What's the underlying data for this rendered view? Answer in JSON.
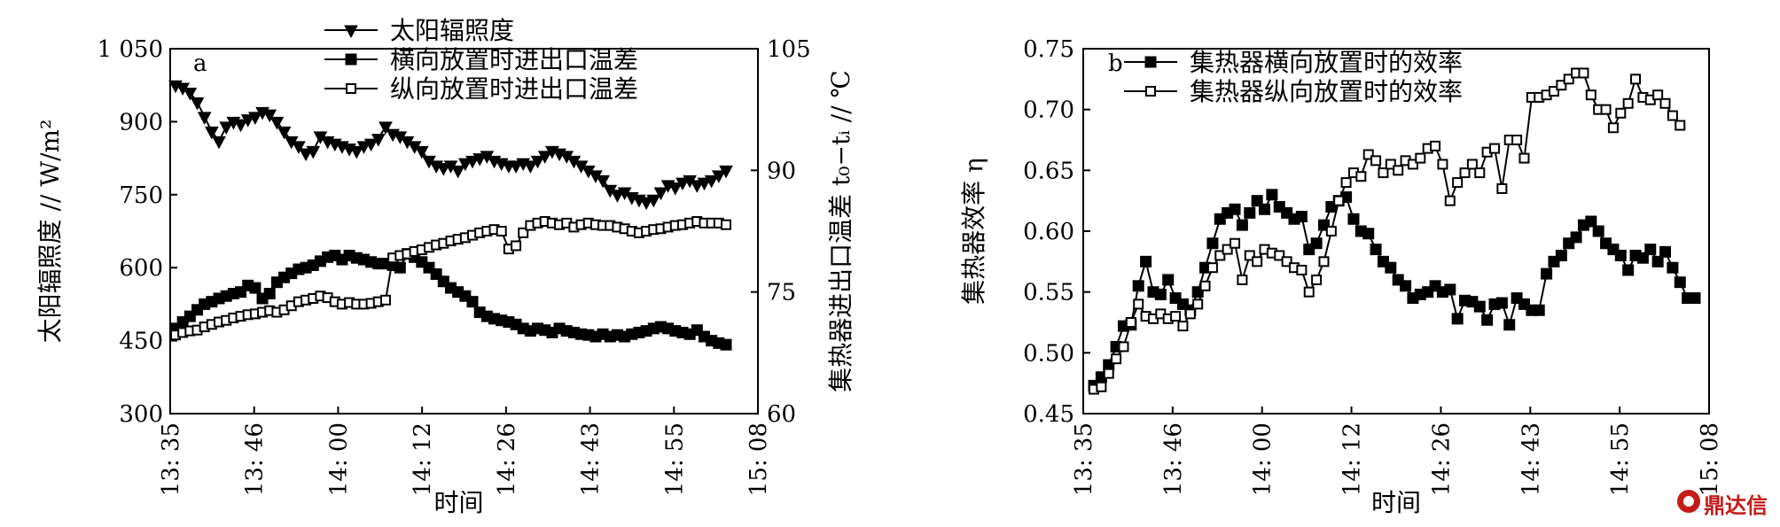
{
  "colors": {
    "ink": "#000000",
    "background": "#ffffff",
    "watermark": "#c41a1a"
  },
  "watermark": {
    "icon": "dingdaxin-logo-icon",
    "text": "鼎达信"
  },
  "chart_data": [
    {
      "panel": "a",
      "type": "line",
      "xlabel": "时间",
      "x_ticks": [
        "13: 35",
        "13: 46",
        "14: 00",
        "14: 12",
        "14: 26",
        "14: 43",
        "14: 55",
        "15: 08"
      ],
      "ylabel_left": "太阳辐照度 // W/m²",
      "ylabel_right": "集热器进出口温差 t₀−tᵢ // ℃",
      "ylim_left": [
        300,
        1050
      ],
      "ylim_right": [
        60,
        105
      ],
      "yticks_left": [
        300,
        450,
        600,
        750,
        900,
        1050
      ],
      "yticks_left_labels": [
        "300",
        "450",
        "600",
        "750",
        "900",
        "1 050"
      ],
      "yticks_right": [
        60,
        75,
        90,
        105
      ],
      "legend": "top-left",
      "grid": false,
      "series": [
        {
          "name": "太阳辐照度",
          "axis": "left",
          "marker": "triangle-down",
          "values": [
            975,
            970,
            960,
            940,
            910,
            880,
            860,
            890,
            900,
            895,
            905,
            910,
            920,
            915,
            900,
            880,
            860,
            850,
            835,
            840,
            870,
            860,
            855,
            850,
            845,
            840,
            850,
            855,
            865,
            890,
            875,
            870,
            860,
            850,
            840,
            820,
            810,
            805,
            810,
            800,
            815,
            820,
            825,
            830,
            820,
            815,
            810,
            810,
            815,
            810,
            820,
            830,
            840,
            835,
            830,
            820,
            810,
            800,
            790,
            780,
            760,
            750,
            755,
            745,
            740,
            735,
            740,
            755,
            770,
            765,
            775,
            780,
            770,
            775,
            780,
            790,
            800
          ]
        },
        {
          "name": "横向放置时进出口温差",
          "axis": "right",
          "marker": "square-filled",
          "values": [
            70.5,
            71.3,
            72.0,
            72.8,
            73.5,
            73.8,
            74.2,
            74.5,
            74.8,
            75.0,
            75.8,
            75.5,
            74.2,
            74.8,
            76.2,
            76.8,
            77.3,
            77.8,
            78.0,
            78.3,
            78.8,
            79.3,
            79.5,
            79.0,
            79.5,
            79.2,
            79.0,
            78.7,
            78.5,
            78.5,
            78.3,
            78.0,
            79.7,
            79.3,
            78.7,
            78.0,
            77.2,
            76.3,
            75.5,
            75.0,
            74.5,
            73.8,
            72.5,
            72.0,
            71.7,
            71.5,
            71.3,
            71.0,
            70.5,
            70.2,
            70.5,
            70.3,
            70.0,
            70.5,
            70.2,
            70.0,
            69.8,
            69.7,
            69.5,
            69.8,
            69.5,
            69.7,
            69.5,
            69.8,
            70.0,
            70.2,
            70.5,
            70.7,
            70.5,
            70.2,
            70.0,
            69.8,
            70.3,
            69.5,
            69.0,
            68.7,
            68.5
          ]
        },
        {
          "name": "纵向放置时进出口温差",
          "axis": "right",
          "marker": "square-open",
          "values": [
            69.7,
            70.0,
            70.2,
            70.3,
            70.7,
            71.0,
            71.3,
            71.5,
            71.8,
            72.0,
            72.2,
            72.3,
            72.5,
            72.7,
            72.5,
            72.8,
            73.3,
            73.8,
            74.0,
            74.2,
            74.5,
            74.3,
            73.8,
            73.5,
            73.7,
            73.5,
            73.5,
            73.6,
            73.8,
            74.0,
            79.2,
            79.5,
            79.7,
            80.0,
            80.2,
            80.5,
            80.8,
            81.0,
            81.3,
            81.5,
            81.7,
            82.0,
            82.3,
            82.5,
            82.7,
            82.5,
            80.3,
            80.7,
            82.3,
            83.2,
            83.5,
            83.7,
            83.5,
            83.3,
            83.5,
            83.0,
            83.3,
            83.5,
            83.3,
            83.2,
            83.2,
            83.0,
            82.8,
            82.5,
            82.3,
            82.5,
            82.7,
            82.8,
            83.0,
            83.2,
            83.3,
            83.5,
            83.7,
            83.5,
            83.5,
            83.5,
            83.3
          ]
        }
      ]
    },
    {
      "panel": "b",
      "type": "line",
      "xlabel": "时间",
      "x_ticks": [
        "13: 35",
        "13: 46",
        "14: 00",
        "14: 12",
        "14: 26",
        "14: 43",
        "14: 55",
        "15: 08"
      ],
      "ylabel": "集热器效率 η",
      "ylim": [
        0.45,
        0.75
      ],
      "yticks": [
        0.45,
        0.5,
        0.55,
        0.6,
        0.65,
        0.7,
        0.75
      ],
      "ytick_labels": [
        "0.45",
        "0.50",
        "0.55",
        "0.60",
        "0.65",
        "0.70",
        "0.75"
      ],
      "legend": "top-left",
      "grid": false,
      "series": [
        {
          "name": "集热器横向放置时的效率",
          "marker": "square-filled",
          "values": [
            0.473,
            0.48,
            0.49,
            0.505,
            0.522,
            0.523,
            0.555,
            0.575,
            0.55,
            0.548,
            0.56,
            0.545,
            0.54,
            0.535,
            0.55,
            0.57,
            0.59,
            0.61,
            0.615,
            0.618,
            0.605,
            0.615,
            0.625,
            0.618,
            0.63,
            0.62,
            0.615,
            0.61,
            0.612,
            0.585,
            0.59,
            0.605,
            0.62,
            0.625,
            0.628,
            0.61,
            0.6,
            0.598,
            0.585,
            0.575,
            0.57,
            0.56,
            0.555,
            0.545,
            0.548,
            0.55,
            0.555,
            0.55,
            0.552,
            0.528,
            0.543,
            0.542,
            0.538,
            0.527,
            0.54,
            0.541,
            0.523,
            0.545,
            0.54,
            0.535,
            0.535,
            0.565,
            0.575,
            0.58,
            0.59,
            0.595,
            0.605,
            0.608,
            0.6,
            0.59,
            0.585,
            0.58,
            0.568,
            0.58,
            0.578,
            0.585,
            0.575,
            0.583,
            0.57,
            0.558,
            0.545,
            0.545
          ]
        },
        {
          "name": "集热器纵向放置时的效率",
          "marker": "square-open",
          "values": [
            0.47,
            0.472,
            0.483,
            0.495,
            0.505,
            0.525,
            0.54,
            0.53,
            0.528,
            0.532,
            0.528,
            0.53,
            0.522,
            0.532,
            0.54,
            0.555,
            0.57,
            0.58,
            0.585,
            0.59,
            0.56,
            0.58,
            0.575,
            0.585,
            0.582,
            0.58,
            0.575,
            0.57,
            0.568,
            0.55,
            0.56,
            0.575,
            0.6,
            0.625,
            0.64,
            0.648,
            0.645,
            0.663,
            0.658,
            0.648,
            0.655,
            0.65,
            0.658,
            0.655,
            0.66,
            0.668,
            0.67,
            0.655,
            0.625,
            0.64,
            0.648,
            0.655,
            0.648,
            0.665,
            0.668,
            0.635,
            0.675,
            0.675,
            0.66,
            0.71,
            0.71,
            0.712,
            0.715,
            0.72,
            0.725,
            0.73,
            0.73,
            0.712,
            0.7,
            0.7,
            0.685,
            0.697,
            0.705,
            0.725,
            0.71,
            0.708,
            0.712,
            0.705,
            0.695,
            0.687
          ]
        }
      ]
    }
  ]
}
